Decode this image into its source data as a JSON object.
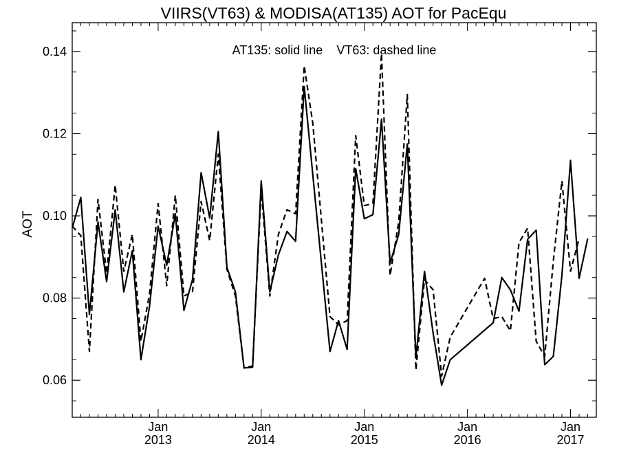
{
  "chart_data": {
    "type": "line",
    "title": "VIIRS(VT63) & MODISA(AT135)  AOT for PacEqu",
    "xlabel": "",
    "ylabel": "AOT",
    "annotation": "AT135: solid line    VT63: dashed line",
    "x_range": [
      "2012-03",
      "2017-04"
    ],
    "ylim": [
      0.051,
      0.147
    ],
    "y_ticks": [
      0.06,
      0.08,
      0.1,
      0.12,
      0.14
    ],
    "y_tick_labels": [
      "0.06",
      "0.08",
      "0.10",
      "0.12",
      "0.14"
    ],
    "x_ticks": [
      {
        "x": "2013-01",
        "month": "Jan",
        "year": "2013"
      },
      {
        "x": "2014-01",
        "month": "Jan",
        "year": "2014"
      },
      {
        "x": "2015-01",
        "month": "Jan",
        "year": "2015"
      },
      {
        "x": "2016-01",
        "month": "Jan",
        "year": "2016"
      },
      {
        "x": "2017-01",
        "month": "Jan",
        "year": "2017"
      }
    ],
    "grid": false,
    "series": [
      {
        "name": "AT135",
        "style": "solid",
        "color": "#000000",
        "points": [
          [
            "2012-03",
            0.097
          ],
          [
            "2012-04",
            0.1045
          ],
          [
            "2012-05",
            0.076
          ],
          [
            "2012-06",
            0.0985
          ],
          [
            "2012-07",
            0.084
          ],
          [
            "2012-08",
            0.1015
          ],
          [
            "2012-09",
            0.0815
          ],
          [
            "2012-10",
            0.0915
          ],
          [
            "2012-11",
            0.065
          ],
          [
            "2012-12",
            0.078
          ],
          [
            "2013-01",
            0.0975
          ],
          [
            "2013-02",
            0.088
          ],
          [
            "2013-03",
            0.1005
          ],
          [
            "2013-04",
            0.077
          ],
          [
            "2013-05",
            0.0845
          ],
          [
            "2013-06",
            0.1105
          ],
          [
            "2013-07",
            0.0995
          ],
          [
            "2013-08",
            0.1205
          ],
          [
            "2013-09",
            0.0875
          ],
          [
            "2013-10",
            0.0815
          ],
          [
            "2013-11",
            0.063
          ],
          [
            "2013-12",
            0.0632
          ],
          [
            "2014-01",
            0.1085
          ],
          [
            "2014-02",
            0.0815
          ],
          [
            "2014-03",
            0.0905
          ],
          [
            "2014-04",
            0.0962
          ],
          [
            "2014-05",
            0.0938
          ],
          [
            "2014-06",
            0.1315
          ],
          [
            "2014-09",
            0.067
          ],
          [
            "2014-10",
            0.0745
          ],
          [
            "2014-11",
            0.0675
          ],
          [
            "2014-12",
            0.1115
          ],
          [
            "2015-01",
            0.0993
          ],
          [
            "2015-02",
            0.1003
          ],
          [
            "2015-03",
            0.1235
          ],
          [
            "2015-04",
            0.0885
          ],
          [
            "2015-05",
            0.0955
          ],
          [
            "2015-06",
            0.1175
          ],
          [
            "2015-07",
            0.0655
          ],
          [
            "2015-08",
            0.0865
          ],
          [
            "2015-09",
            0.0715
          ],
          [
            "2015-10",
            0.0588
          ],
          [
            "2015-11",
            0.065
          ],
          [
            "2016-04",
            0.074
          ],
          [
            "2016-05",
            0.085
          ],
          [
            "2016-06",
            0.082
          ],
          [
            "2016-07",
            0.0768
          ],
          [
            "2016-08",
            0.0943
          ],
          [
            "2016-09",
            0.0965
          ],
          [
            "2016-10",
            0.0638
          ],
          [
            "2016-11",
            0.0658
          ],
          [
            "2016-12",
            0.0855
          ],
          [
            "2017-01",
            0.1135
          ],
          [
            "2017-02",
            0.0848
          ],
          [
            "2017-03",
            0.0945
          ]
        ]
      },
      {
        "name": "VT63",
        "style": "dashed",
        "color": "#000000",
        "points": [
          [
            "2012-03",
            0.0975
          ],
          [
            "2012-04",
            0.0952
          ],
          [
            "2012-05",
            0.067
          ],
          [
            "2012-06",
            0.104
          ],
          [
            "2012-07",
            0.086
          ],
          [
            "2012-08",
            0.1075
          ],
          [
            "2012-09",
            0.0865
          ],
          [
            "2012-10",
            0.0955
          ],
          [
            "2012-11",
            0.0695
          ],
          [
            "2012-12",
            0.081
          ],
          [
            "2013-01",
            0.103
          ],
          [
            "2013-02",
            0.083
          ],
          [
            "2013-03",
            0.105
          ],
          [
            "2013-04",
            0.0805
          ],
          [
            "2013-05",
            0.0815
          ],
          [
            "2013-06",
            0.1035
          ],
          [
            "2013-07",
            0.094
          ],
          [
            "2013-08",
            0.115
          ],
          [
            "2013-09",
            0.087
          ],
          [
            "2013-10",
            0.0805
          ],
          [
            "2013-11",
            0.063
          ],
          [
            "2013-12",
            0.0635
          ],
          [
            "2014-01",
            0.1065
          ],
          [
            "2014-02",
            0.0805
          ],
          [
            "2014-03",
            0.0955
          ],
          [
            "2014-04",
            0.1015
          ],
          [
            "2014-05",
            0.1005
          ],
          [
            "2014-06",
            0.1365
          ],
          [
            "2014-07",
            0.1225
          ],
          [
            "2014-09",
            0.0755
          ],
          [
            "2014-10",
            0.0735
          ],
          [
            "2014-11",
            0.0745
          ],
          [
            "2014-12",
            0.1195
          ],
          [
            "2015-01",
            0.1025
          ],
          [
            "2015-02",
            0.103
          ],
          [
            "2015-03",
            0.1395
          ],
          [
            "2015-04",
            0.0855
          ],
          [
            "2015-05",
            0.0985
          ],
          [
            "2015-06",
            0.1295
          ],
          [
            "2015-07",
            0.0625
          ],
          [
            "2015-08",
            0.0845
          ],
          [
            "2015-09",
            0.082
          ],
          [
            "2015-10",
            0.061
          ],
          [
            "2015-11",
            0.0705
          ],
          [
            "2016-03",
            0.0848
          ],
          [
            "2016-04",
            0.075
          ],
          [
            "2016-05",
            0.0755
          ],
          [
            "2016-06",
            0.072
          ],
          [
            "2016-07",
            0.0935
          ],
          [
            "2016-08",
            0.097
          ],
          [
            "2016-09",
            0.0695
          ],
          [
            "2016-10",
            0.0658
          ],
          [
            "2016-11",
            0.089
          ],
          [
            "2016-12",
            0.1085
          ],
          [
            "2017-01",
            0.0865
          ],
          [
            "2017-02",
            0.0945
          ]
        ]
      }
    ]
  }
}
